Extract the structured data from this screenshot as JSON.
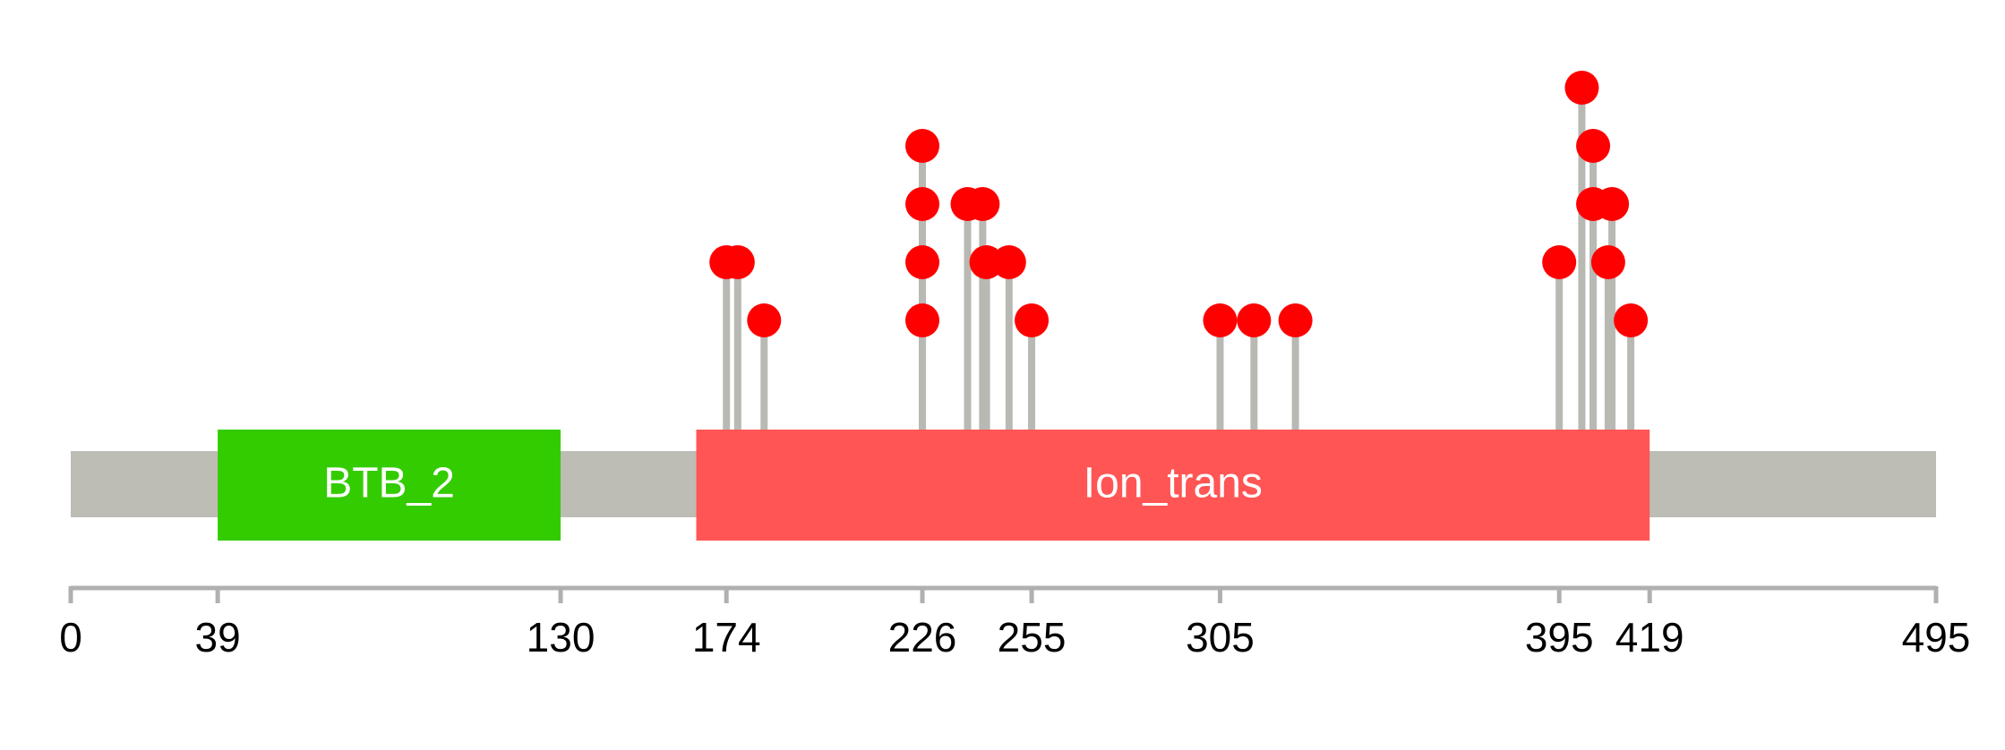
{
  "chart_data": {
    "type": "lollipop",
    "xlim": [
      0,
      495
    ],
    "xticks": [
      0,
      39,
      130,
      174,
      226,
      255,
      305,
      395,
      419,
      495
    ],
    "domains": [
      {
        "name": "BTB_2",
        "start": 39,
        "end": 130,
        "color": "#33cc00"
      },
      {
        "name": "Ion_trans",
        "start": 166,
        "end": 419,
        "color": "#ff5555"
      }
    ],
    "x": [
      174,
      177,
      184,
      226,
      226,
      226,
      226,
      238,
      242,
      243,
      249,
      255,
      305,
      314,
      325,
      395,
      401,
      404,
      404,
      409,
      408,
      414
    ],
    "values": [
      2,
      2,
      1,
      1,
      2,
      3,
      4,
      3,
      3,
      2,
      2,
      1,
      1,
      1,
      1,
      2,
      5,
      4,
      3,
      3,
      2,
      1
    ],
    "color": "#ff0000",
    "stem_color": "#b9b9b3",
    "backbone_color": "#bdbdb6",
    "axis_color": "#b0b0b0"
  }
}
